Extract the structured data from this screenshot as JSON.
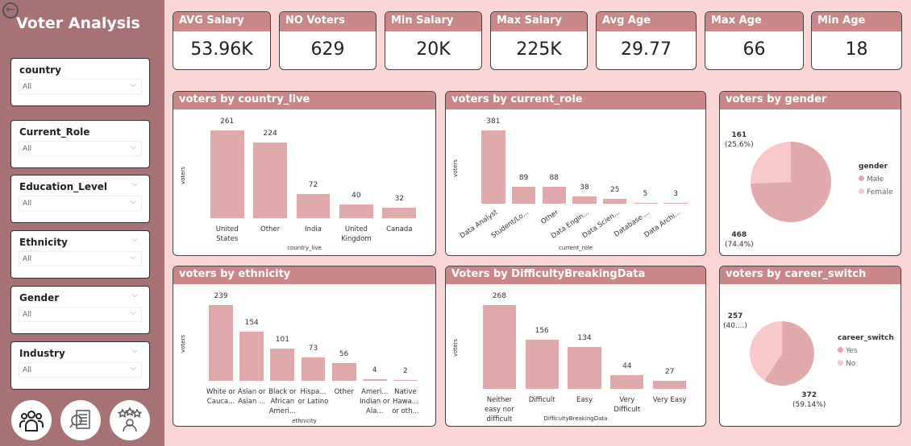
{
  "sidebar": {
    "title": "Voter Analysis",
    "slicers": [
      {
        "label": "country",
        "value": "All"
      },
      {
        "label": "Current_Role",
        "value": "All"
      },
      {
        "label": "Education_Level",
        "value": "All"
      },
      {
        "label": "Ethnicity",
        "value": "All"
      },
      {
        "label": "Gender",
        "value": "All"
      },
      {
        "label": "Industry",
        "value": "All"
      }
    ]
  },
  "kpis": [
    {
      "label": "AVG Salary",
      "value": "53.96K"
    },
    {
      "label": "NO Voters",
      "value": "629"
    },
    {
      "label": "Min Salary",
      "value": "20K"
    },
    {
      "label": "Max Salary",
      "value": "225K"
    },
    {
      "label": "Avg Age",
      "value": "29.77"
    },
    {
      "label": "Max Age",
      "value": "66"
    },
    {
      "label": "Min Age",
      "value": "18"
    }
  ],
  "colors": {
    "bar": "#e0a9ab",
    "header": "#c9878a",
    "sidebar": "#a67275",
    "pie_light": "#f8c9cb"
  },
  "chart_data": [
    {
      "id": "country",
      "type": "bar",
      "title": "voters by country_live",
      "xlabel": "country_live",
      "ylabel": "voters",
      "categories": [
        "United States",
        "Other",
        "India",
        "United Kingdom",
        "Canada"
      ],
      "values": [
        261,
        224,
        72,
        40,
        32
      ]
    },
    {
      "id": "role",
      "type": "bar",
      "title": "voters by current_role",
      "xlabel": "current_role",
      "ylabel": "voters",
      "categories": [
        "Data Analyst",
        "Student/Lo...",
        "Other",
        "Data Engin...",
        "Data Scien...",
        "Database ...",
        "Data Archi..."
      ],
      "values": [
        381,
        89,
        88,
        38,
        25,
        5,
        3
      ]
    },
    {
      "id": "gender",
      "type": "pie",
      "title": "voters by gender",
      "legend_title": "gender",
      "slices": [
        {
          "name": "Male",
          "value": 468,
          "label": "468",
          "pct": "(74.4%)"
        },
        {
          "name": "Female",
          "value": 161,
          "label": "161",
          "pct": "(25.6%)"
        }
      ]
    },
    {
      "id": "ethnicity",
      "type": "bar",
      "title": "voters by ethnicity",
      "xlabel": "ethnicity",
      "ylabel": "voters",
      "categories": [
        "White or Cauca...",
        "Asian or Asian ...",
        "Black or African Ameri...",
        "Hispa... or Latino",
        "Other",
        "Ameri... Indian or Ala...",
        "Native Hawa... or oth..."
      ],
      "values": [
        239,
        154,
        101,
        73,
        56,
        4,
        2
      ]
    },
    {
      "id": "difficulty",
      "type": "bar",
      "title": "Voters by DifficultyBreakingData",
      "xlabel": "DifficultyBreakingData",
      "ylabel": "voters",
      "categories": [
        "Neither easy nor difficult",
        "Difficult",
        "Easy",
        "Very Difficult",
        "Very Easy"
      ],
      "values": [
        268,
        156,
        134,
        44,
        27
      ]
    },
    {
      "id": "career",
      "type": "pie",
      "title": "voters by career_switch",
      "legend_title": "career_switch",
      "slices": [
        {
          "name": "Yes",
          "value": 372,
          "label": "372",
          "pct": "(59.14%)"
        },
        {
          "name": "No",
          "value": 257,
          "label": "257",
          "pct": "(40....)"
        }
      ]
    }
  ]
}
